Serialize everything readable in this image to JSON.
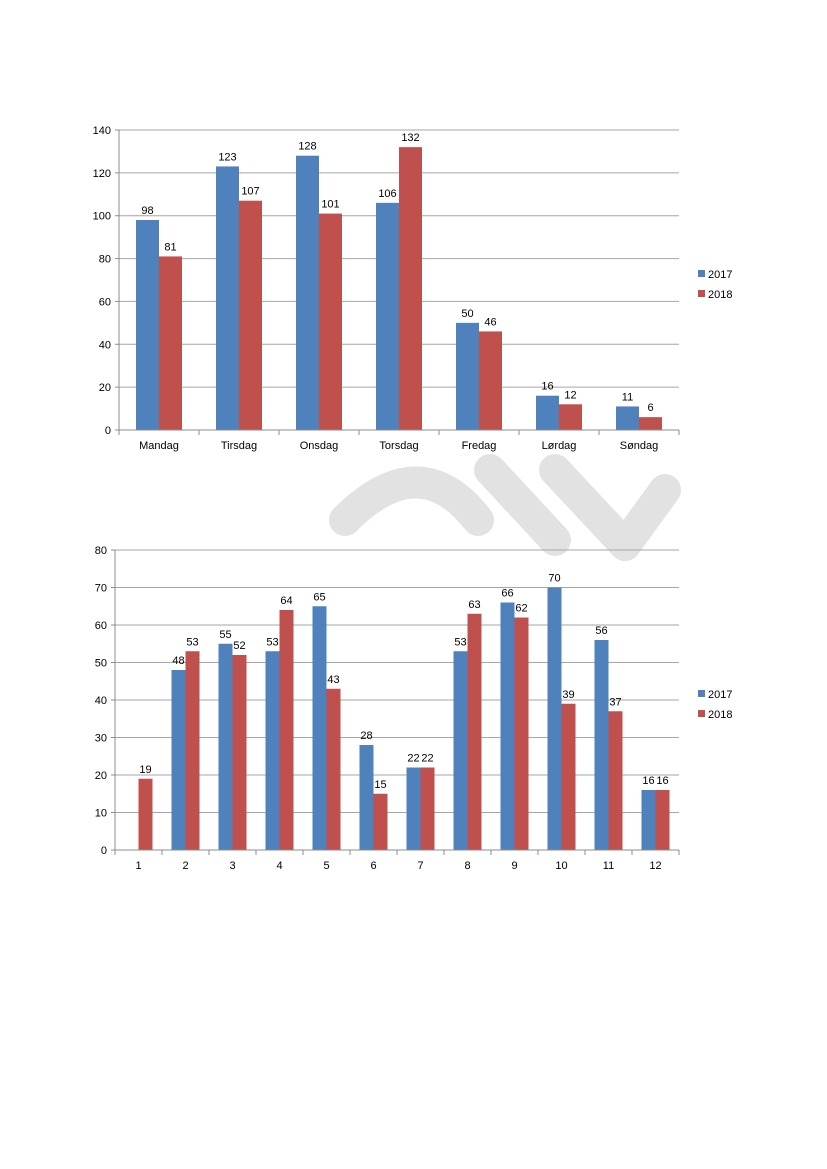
{
  "colors": {
    "series_2017": "#4f81bd",
    "series_2018": "#c0504d",
    "grid": "#a6a6a6",
    "axis": "#8c8c8c",
    "watermark": "#dcdcdc"
  },
  "chart_data": [
    {
      "type": "bar",
      "categories": [
        "Mandag",
        "Tirsdag",
        "Onsdag",
        "Torsdag",
        "Fredag",
        "Lørdag",
        "Søndag"
      ],
      "series": [
        {
          "name": "2017",
          "values": [
            98,
            123,
            128,
            106,
            50,
            16,
            11
          ]
        },
        {
          "name": "2018",
          "values": [
            81,
            107,
            101,
            132,
            46,
            12,
            6
          ]
        }
      ],
      "yticks": [
        "0",
        "20",
        "40",
        "60",
        "80",
        "100",
        "120",
        "140"
      ],
      "ylim": [
        0,
        140
      ],
      "grid": true,
      "legend": "right"
    },
    {
      "type": "bar",
      "categories": [
        "1",
        "2",
        "3",
        "4",
        "5",
        "6",
        "7",
        "8",
        "9",
        "10",
        "11",
        "12"
      ],
      "series": [
        {
          "name": "2017",
          "values": [
            null,
            48,
            55,
            53,
            65,
            28,
            22,
            53,
            66,
            70,
            56,
            16
          ]
        },
        {
          "name": "2018",
          "values": [
            19,
            53,
            52,
            64,
            43,
            15,
            22,
            63,
            62,
            39,
            37,
            16
          ]
        }
      ],
      "yticks": [
        "0",
        "10",
        "20",
        "30",
        "40",
        "50",
        "60",
        "70",
        "80"
      ],
      "ylim": [
        0,
        80
      ],
      "grid": true,
      "legend": "right"
    }
  ]
}
